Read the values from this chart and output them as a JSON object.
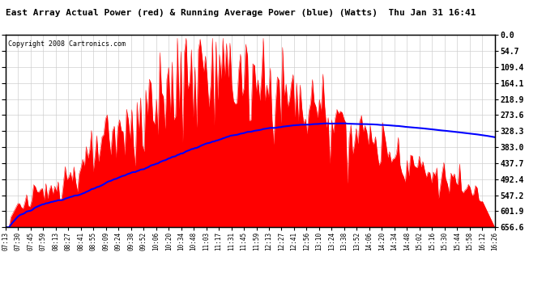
{
  "title": "East Array Actual Power (red) & Running Average Power (blue) (Watts)  Thu Jan 31 16:41",
  "copyright": "Copyright 2008 Cartronics.com",
  "ylabel_right": [
    "656.6",
    "601.9",
    "547.2",
    "492.4",
    "437.7",
    "383.0",
    "328.3",
    "273.6",
    "218.9",
    "164.1",
    "109.4",
    "54.7",
    "0.0"
  ],
  "ymax": 656.6,
  "ymin": 0.0,
  "ytick_values": [
    0.0,
    54.7,
    109.4,
    164.1,
    218.9,
    273.6,
    328.3,
    383.0,
    437.7,
    492.4,
    547.2,
    601.9,
    656.6
  ],
  "x_labels": [
    "07:13",
    "07:30",
    "07:45",
    "07:59",
    "08:13",
    "08:27",
    "08:41",
    "08:55",
    "09:09",
    "09:24",
    "09:38",
    "09:52",
    "10:06",
    "10:20",
    "10:34",
    "10:48",
    "11:03",
    "11:17",
    "11:31",
    "11:45",
    "11:59",
    "12:13",
    "12:27",
    "12:41",
    "12:56",
    "13:10",
    "13:24",
    "13:38",
    "13:52",
    "14:06",
    "14:20",
    "14:34",
    "14:48",
    "15:02",
    "15:16",
    "15:30",
    "15:44",
    "15:58",
    "16:12",
    "16:26"
  ],
  "background_color": "#ffffff",
  "plot_bg_color": "#ffffff",
  "grid_color": "#cccccc",
  "red_color": "#ff0000",
  "blue_color": "#0000ff"
}
